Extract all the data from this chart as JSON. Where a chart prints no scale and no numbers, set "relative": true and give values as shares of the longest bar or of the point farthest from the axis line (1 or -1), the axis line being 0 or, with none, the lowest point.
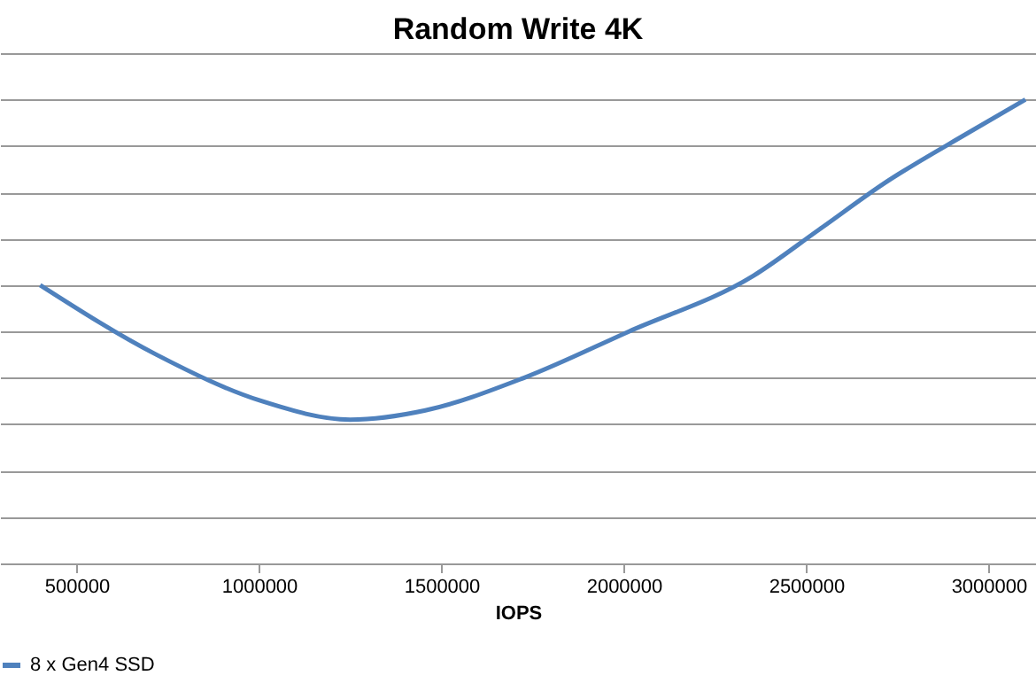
{
  "chart_data": {
    "type": "line",
    "title": "Random Write 4K",
    "xlabel": "IOPS",
    "relative": true,
    "x": [
      400000,
      719000,
      1007000,
      1250000,
      1456000,
      1726000,
      2014000,
      2355000,
      2536000,
      2715000,
      2948000,
      3101000
    ],
    "series": [
      {
        "name": "8 x Gen4 SSD",
        "color": "#4f81bd",
        "values": [
          0.6,
          0.45,
          0.35,
          0.31,
          0.33,
          0.4,
          0.5,
          0.62,
          0.72,
          0.82,
          0.93,
          1.0
        ]
      }
    ],
    "xlim": [
      290000,
      3130000
    ],
    "xticks": [
      500000,
      1000000,
      1500000,
      2000000,
      2500000,
      3000000
    ],
    "grid": "y",
    "legend": "bottom",
    "marker": "none",
    "line_style": "solid"
  }
}
